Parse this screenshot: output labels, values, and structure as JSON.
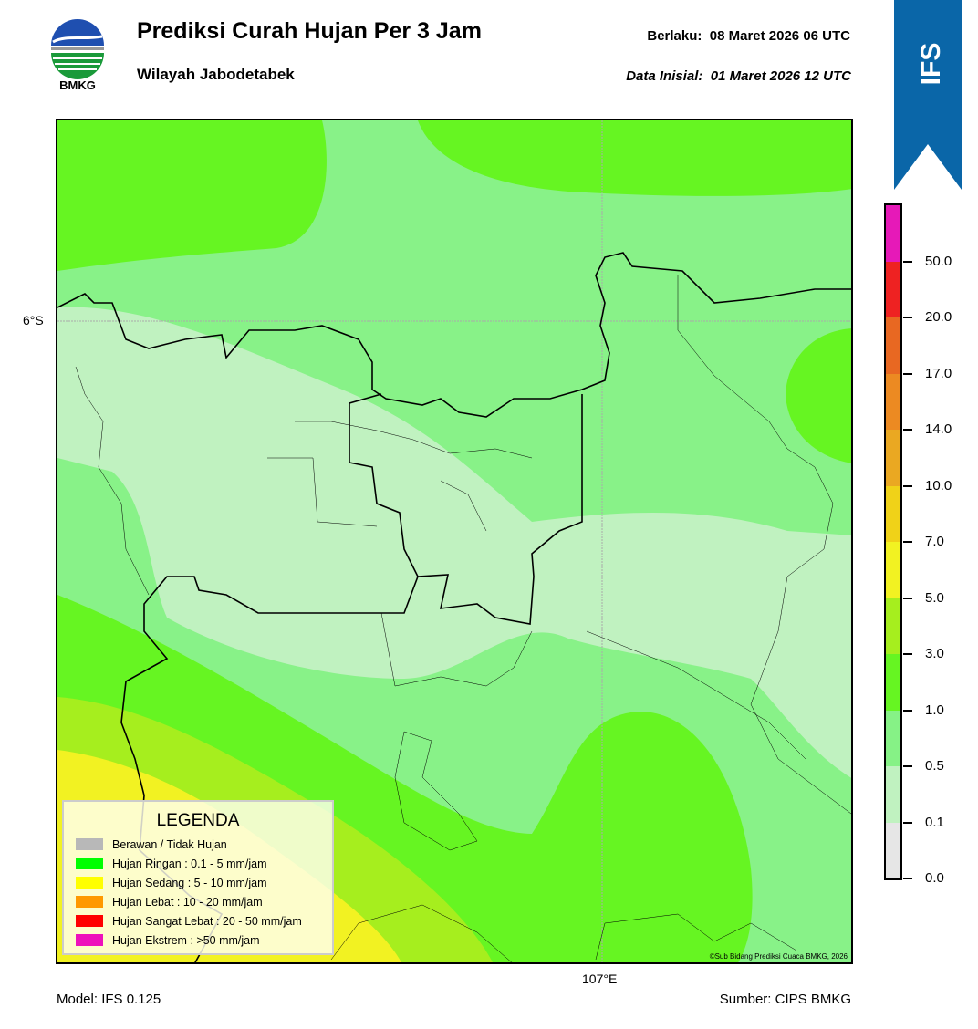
{
  "header": {
    "title": "Prediksi Curah Hujan Per 3 Jam",
    "subtitle": "Wilayah Jabodetabek",
    "valid_label": "Berlaku:",
    "valid_value": "08 Maret 2026 06 UTC",
    "init_label": "Data Inisial:",
    "init_value": "01 Maret 2026 12 UTC",
    "logo_text": "BMKG",
    "badge": "IFS"
  },
  "map": {
    "lat_label": "6°S",
    "lon_label": "107°E",
    "copyright": "©Sub Bidang Prediksi Cuaca BMKG, 2026"
  },
  "legend": {
    "title": "LEGENDA",
    "items": [
      {
        "label": "Berawan / Tidak Hujan",
        "color": "#b8b8b8"
      },
      {
        "label": "Hujan Ringan : 0.1 - 5 mm/jam",
        "color": "#00ff00"
      },
      {
        "label": "Hujan Sedang : 5 - 10 mm/jam",
        "color": "#ffff00"
      },
      {
        "label": "Hujan Lebat : 10 - 20 mm/jam",
        "color": "#ff9900"
      },
      {
        "label": "Hujan Sangat Lebat : 20 - 50 mm/jam",
        "color": "#ff0000"
      },
      {
        "label": "Hujan Ekstrem : >50 mm/jam",
        "color": "#ee11bb"
      }
    ]
  },
  "colorbar": {
    "ticks": [
      "0.0",
      "0.1",
      "0.5",
      "1.0",
      "3.0",
      "5.0",
      "7.0",
      "10.0",
      "14.0",
      "17.0",
      "20.0",
      "50.0"
    ],
    "colors": [
      "#e6e6e6",
      "#c0f2c0",
      "#86f286",
      "#66f522",
      "#a6ee1e",
      "#f2f222",
      "#f0d218",
      "#eaa822",
      "#ec8a22",
      "#e86822",
      "#ee2222",
      "#e619b8"
    ]
  },
  "footer": {
    "model": "Model: IFS 0.125",
    "source": "Sumber: CIPS BMKG"
  }
}
